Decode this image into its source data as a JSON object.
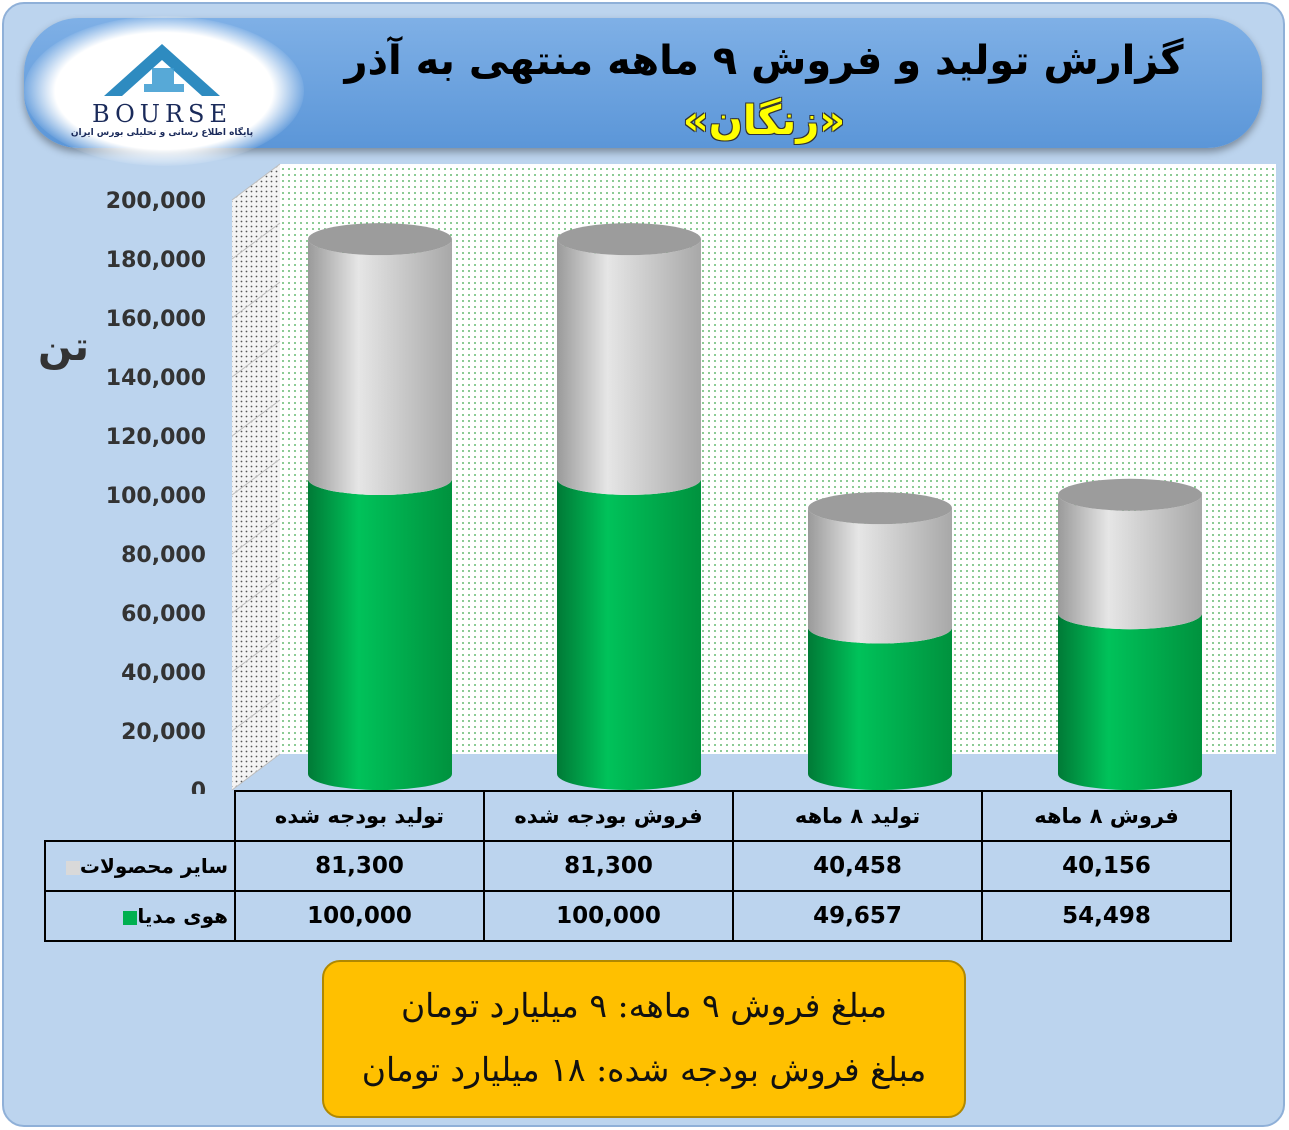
{
  "header": {
    "title_line1": "گزارش تولید و فروش ۹ ماهه منتهی به آذر",
    "title_line2": "«زنگان»",
    "logo_text": "BOURSE",
    "logo_subtitle": "پایگاه اطلاع رسانی و تحلیلی بورس ایران"
  },
  "chart_data": {
    "type": "bar",
    "stacked": true,
    "style": "3d-cylinder",
    "ylabel": "تن",
    "ylim": [
      0,
      200000
    ],
    "yticks": [
      "0",
      "20,000",
      "40,000",
      "60,000",
      "80,000",
      "100,000",
      "120,000",
      "140,000",
      "160,000",
      "180,000",
      "200,000"
    ],
    "categories": [
      "تولید بودجه شده",
      "فروش بودجه شده",
      "تولید ۸ ماهه",
      "فروش ۸ ماهه"
    ],
    "series": [
      {
        "name": "سایر محصولات",
        "color": "#d9d9d9",
        "values": [
          81300,
          81300,
          40458,
          40156
        ],
        "labels": [
          "81,300",
          "81,300",
          "40,458",
          "40,156"
        ]
      },
      {
        "name": "هوی مدیا",
        "color": "#00b050",
        "values": [
          100000,
          100000,
          49657,
          54498
        ],
        "labels": [
          "100,000",
          "100,000",
          "49,657",
          "54,498"
        ]
      }
    ]
  },
  "summary": {
    "line1": "مبلغ فروش ۹ ماهه: ۹ میلیارد تومان",
    "line2": "مبلغ فروش بودجه شده: ۱۸ میلیارد تومان"
  },
  "colors": {
    "frame_bg": "#bcd4ee",
    "title_bg": "#5b96d8",
    "summary_bg": "#ffc000",
    "green": "#00b050",
    "gray": "#d9d9d9"
  }
}
